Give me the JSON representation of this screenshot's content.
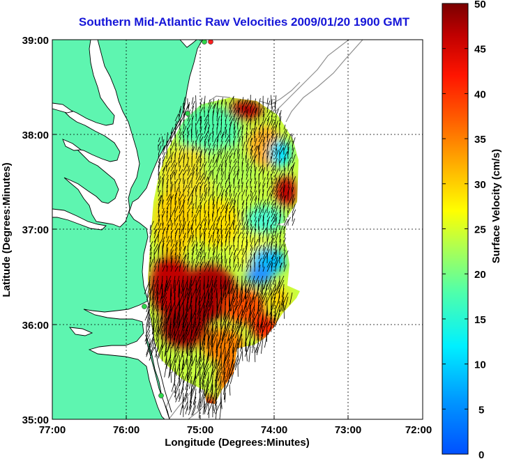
{
  "title": "Southern Mid-Atlantic Raw Velocities 2009/01/20 1900 GMT",
  "x_axis": {
    "label": "Longitude (Degrees:Minutes)",
    "ticks": [
      "77:00",
      "76:00",
      "75:00",
      "74:00",
      "73:00",
      "72:00"
    ]
  },
  "y_axis": {
    "label": "Latitude (Degrees:Minutes)",
    "ticks": [
      "39:00",
      "38:00",
      "37:00",
      "36:00",
      "35:00"
    ]
  },
  "colorbar": {
    "label": "Surface Velocity (cm/s)",
    "ticks": [
      "50",
      "45",
      "40",
      "35",
      "30",
      "25",
      "20",
      "15",
      "10",
      "5",
      "0"
    ],
    "min": 0,
    "max": 50
  },
  "colors": {
    "land": "#5ef5b0",
    "title": "#1515d8",
    "station": "#2ed64a"
  }
}
